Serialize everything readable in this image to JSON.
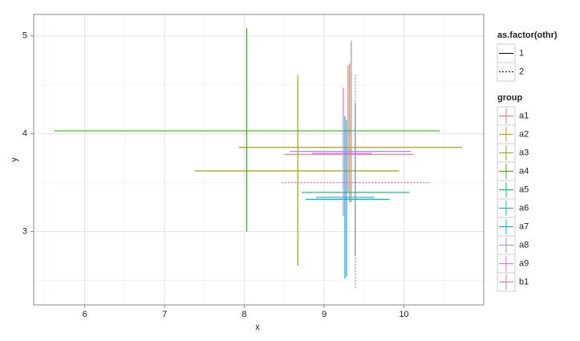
{
  "chart_data": {
    "type": "errorcross",
    "x_label": "x",
    "y_label": "y",
    "xlim": [
      5.36,
      11.0
    ],
    "ylim": [
      2.25,
      5.22
    ],
    "xticks": [
      6,
      7,
      8,
      9,
      10
    ],
    "yticks": [
      3,
      4,
      5
    ],
    "x_minor_ticks": [
      5.5,
      6.5,
      7.5,
      8.5,
      9.5,
      10.5
    ],
    "y_minor_ticks": [
      2.5,
      3.5,
      4.5
    ],
    "grid": true,
    "linetype_legend": {
      "title": "as.factor(othr)",
      "labels": [
        "1",
        "2"
      ]
    },
    "group_legend_title": "group",
    "series": [
      {
        "name": "a1",
        "color": "#F8766D",
        "linetype": "1",
        "x": 9.3,
        "y": 3.79,
        "xerr": [
          8.5,
          10.12
        ],
        "yerr": [
          3.4,
          4.7
        ]
      },
      {
        "name": "a2",
        "color": "#D89000",
        "linetype": "1",
        "x": 9.32,
        "y": 3.86,
        "xerr": [
          7.93,
          10.73
        ],
        "yerr": [
          3.3,
          4.72
        ]
      },
      {
        "name": "a3",
        "color": "#A3A500",
        "linetype": "1",
        "x": 8.67,
        "y": 3.62,
        "xerr": [
          7.38,
          9.94
        ],
        "yerr": [
          2.65,
          4.6
        ]
      },
      {
        "name": "a4",
        "color": "#39B600",
        "linetype": "1",
        "x": 8.03,
        "y": 4.03,
        "xerr": [
          5.62,
          10.45
        ],
        "yerr": [
          3.0,
          5.08
        ]
      },
      {
        "name": "a5",
        "color": "#00BF7D",
        "linetype": "1",
        "x": 9.39,
        "y": 3.4,
        "xerr": [
          8.72,
          10.07
        ],
        "yerr": [
          2.75,
          4.32
        ]
      },
      {
        "name": "a6",
        "color": "#00BFC4",
        "linetype": "1",
        "x": 9.28,
        "y": 3.35,
        "xerr": [
          8.9,
          9.63
        ],
        "yerr": [
          2.54,
          4.14
        ]
      },
      {
        "name": "a7",
        "color": "#00B0F6",
        "linetype": "1",
        "x": 9.26,
        "y": 3.33,
        "xerr": [
          8.77,
          9.82
        ],
        "yerr": [
          2.52,
          4.18
        ]
      },
      {
        "name": "a8",
        "color": "#9590FF",
        "linetype": "1",
        "x": 9.34,
        "y": 3.82,
        "xerr": [
          8.57,
          10.09
        ],
        "yerr": [
          3.3,
          4.95
        ]
      },
      {
        "name": "a9",
        "color": "#E76BF3",
        "linetype": "1",
        "x": 9.24,
        "y": 3.8,
        "xerr": [
          8.85,
          9.6
        ],
        "yerr": [
          3.16,
          4.47
        ]
      },
      {
        "name": "b1",
        "color": "#FF62BC",
        "linetype": "2",
        "x": 9.39,
        "y": 3.5,
        "xerr": [
          8.47,
          10.33
        ],
        "yerr": [
          2.42,
          4.61
        ]
      }
    ]
  }
}
